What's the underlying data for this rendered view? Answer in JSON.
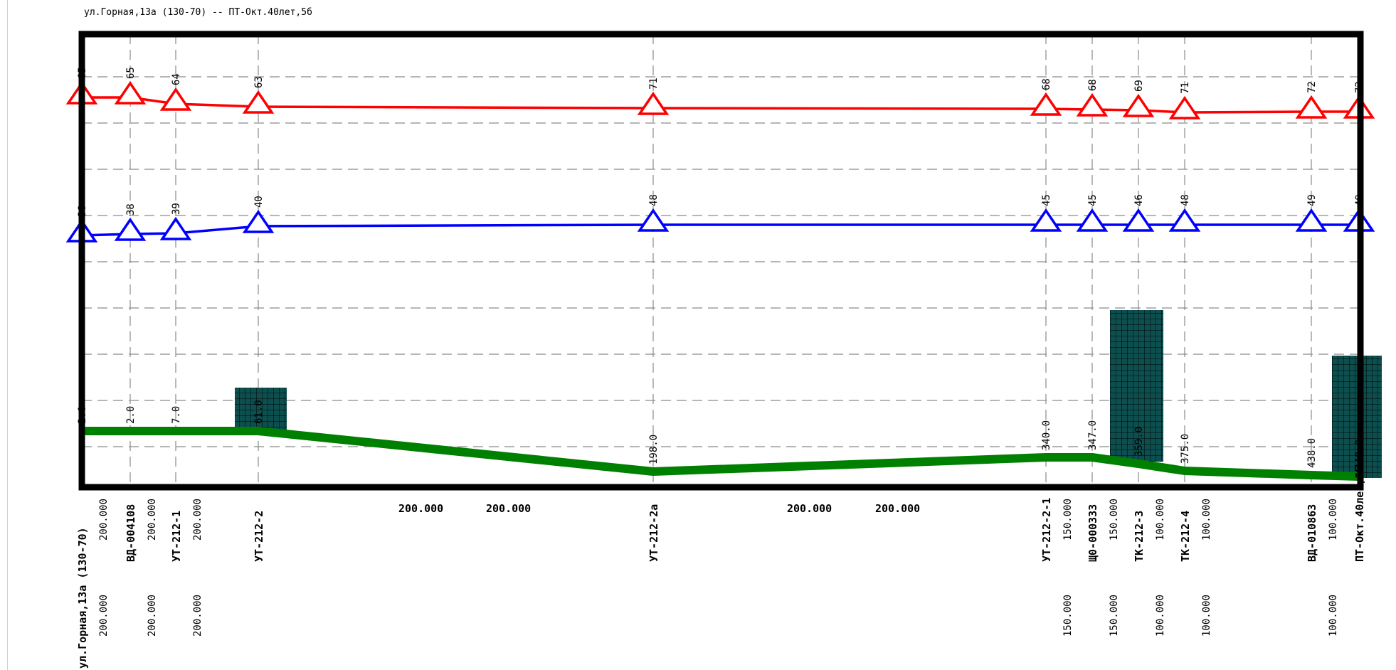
{
  "title": "ул.Горная,13а (130-70) -- ПТ-Окт.40лет,5б",
  "colors": {
    "supply_line": "#ff0000",
    "return_line": "#0000ff",
    "ground_profile": "#008000",
    "chamber_fill": "#0d4f4f",
    "frame": "#000000",
    "grid": "#8a8a8a"
  },
  "nodes": [
    {
      "name": "ул.Горная,13а (130-70)",
      "supply": "65",
      "return": "38",
      "elevation": "2.0",
      "seg_len_top": "200.000",
      "seg_len_bottom": "200.000"
    },
    {
      "name": "ВД-004108",
      "supply": "65",
      "return": "38",
      "elevation": "2.0",
      "seg_len_top": "200.000",
      "seg_len_bottom": "200.000"
    },
    {
      "name": "УТ-212-1",
      "supply": "64",
      "return": "39",
      "elevation": "7.0",
      "seg_len_top": "200.000",
      "seg_len_bottom": "200.000"
    },
    {
      "name": "УТ-212-2",
      "supply": "63",
      "return": "40",
      "elevation": "61.0",
      "seg_len_top": "",
      "seg_len_bottom": ""
    },
    {
      "name": "УТ-212-2а",
      "supply": "71",
      "return": "48",
      "elevation": "198.0",
      "seg_len_top": "",
      "seg_len_bottom": ""
    },
    {
      "name": "УТ-212-2-1",
      "supply": "68",
      "return": "45",
      "elevation": "340.0",
      "seg_len_top": "150.000",
      "seg_len_bottom": "150.000"
    },
    {
      "name": "Щ0-000333",
      "supply": "68",
      "return": "45",
      "elevation": "347.0",
      "seg_len_top": "150.000",
      "seg_len_bottom": "150.000"
    },
    {
      "name": "ТК-212-3",
      "supply": "69",
      "return": "46",
      "elevation": "359.0",
      "seg_len_top": "100.000",
      "seg_len_bottom": "100.000"
    },
    {
      "name": "ТК-212-4",
      "supply": "71",
      "return": "48",
      "elevation": "375.0",
      "seg_len_top": "100.000",
      "seg_len_bottom": "100.000"
    },
    {
      "name": "ВД-010863",
      "supply": "72",
      "return": "49",
      "elevation": "438.0",
      "seg_len_top": "100.000",
      "seg_len_bottom": "100.000"
    },
    {
      "name": "ПТ-Окт.40лет,5б",
      "supply": "72",
      "return": "49",
      "elevation": "440.0",
      "seg_len_top": "",
      "seg_len_bottom": ""
    }
  ],
  "span_labels": [
    "200.000",
    "200.000",
    "200.000",
    "200.000"
  ]
}
